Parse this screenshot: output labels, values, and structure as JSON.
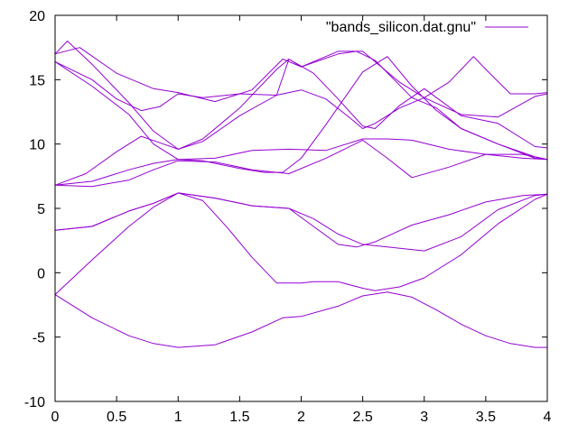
{
  "chart_data": {
    "type": "line",
    "title": "",
    "xlabel": "",
    "ylabel": "",
    "xlim": [
      0,
      4
    ],
    "ylim": [
      -10,
      20
    ],
    "xticks": [
      0,
      0.5,
      1,
      1.5,
      2,
      2.5,
      3,
      3.5,
      4
    ],
    "xtick_labels": [
      "0",
      "0.5",
      "1",
      "1.5",
      "2",
      "2.5",
      "3",
      "3.5",
      "4"
    ],
    "yticks": [
      -10,
      -5,
      0,
      5,
      10,
      15,
      20
    ],
    "ytick_labels": [
      "-10",
      "-5",
      "0",
      "5",
      "10",
      "15",
      "20"
    ],
    "grid": false,
    "legend": {
      "position": "top-right",
      "entries": [
        "\"bands_silicon.dat.gnu\""
      ]
    },
    "line_color": "#9400d3",
    "series": [
      {
        "x": [
          0,
          0.3,
          0.6,
          0.8,
          1.0,
          1.3,
          1.6,
          1.85,
          2.0,
          2.3,
          2.5,
          2.7,
          2.9,
          3.1,
          3.3,
          3.5,
          3.7,
          3.9,
          4.0
        ],
        "values": [
          -1.7,
          -3.5,
          -4.9,
          -5.5,
          -5.8,
          -5.6,
          -4.6,
          -3.5,
          -3.4,
          -2.6,
          -1.8,
          -1.5,
          -1.9,
          -2.9,
          -4.0,
          -4.9,
          -5.5,
          -5.8,
          -5.8
        ]
      },
      {
        "x": [
          0,
          0.3,
          0.6,
          0.8,
          1.0,
          1.2,
          1.4,
          1.6,
          1.8,
          2.0,
          2.1,
          2.3,
          2.5,
          2.6,
          2.8,
          3.0,
          3.3,
          3.6,
          3.9,
          4.0
        ],
        "values": [
          -1.7,
          1.0,
          3.6,
          5.1,
          6.2,
          5.6,
          3.5,
          1.2,
          -0.8,
          -0.8,
          -0.7,
          -0.7,
          -1.2,
          -1.4,
          -1.1,
          -0.4,
          1.4,
          3.8,
          5.7,
          6.1
        ]
      },
      {
        "x": [
          0,
          0.3,
          0.6,
          0.8,
          1.0,
          1.3,
          1.6,
          1.9,
          2.1,
          2.3,
          2.5,
          2.7,
          3.0,
          3.3,
          3.6,
          3.9,
          4.0
        ],
        "values": [
          3.3,
          3.6,
          4.8,
          5.4,
          6.2,
          5.8,
          5.2,
          5.0,
          4.2,
          3.0,
          2.2,
          2.0,
          1.7,
          2.8,
          4.9,
          6.0,
          6.1
        ]
      },
      {
        "x": [
          0,
          0.3,
          0.6,
          0.8,
          1.0,
          1.3,
          1.6,
          1.9,
          2.1,
          2.3,
          2.45,
          2.6,
          2.9,
          3.2,
          3.5,
          3.8,
          4.0
        ],
        "values": [
          3.3,
          3.6,
          4.8,
          5.4,
          6.2,
          5.8,
          5.2,
          5.0,
          3.6,
          2.2,
          2.0,
          2.4,
          3.7,
          4.5,
          5.5,
          6.0,
          6.1
        ]
      },
      {
        "x": [
          0,
          0.3,
          0.6,
          0.8,
          1.0,
          1.3,
          1.6,
          1.9,
          2.2,
          2.5,
          2.7,
          2.9,
          3.2,
          3.5,
          3.8,
          4.0
        ],
        "values": [
          6.8,
          7.1,
          8.0,
          8.5,
          8.8,
          8.9,
          9.5,
          9.6,
          9.5,
          10.4,
          10.4,
          10.3,
          9.6,
          9.2,
          8.9,
          8.8
        ]
      },
      {
        "x": [
          0,
          0.3,
          0.6,
          0.8,
          1.0,
          1.3,
          1.6,
          1.9,
          2.2,
          2.5,
          2.7,
          2.9,
          3.2,
          3.5,
          3.8,
          4.0
        ],
        "values": [
          6.8,
          6.7,
          7.2,
          8.0,
          8.7,
          8.6,
          8.0,
          7.7,
          8.9,
          10.3,
          8.9,
          7.4,
          8.2,
          9.2,
          9.2,
          8.8
        ]
      },
      {
        "x": [
          0,
          0.25,
          0.5,
          0.7,
          0.85,
          1.0,
          1.2,
          1.5,
          1.8,
          1.9,
          2.1,
          2.3,
          2.5,
          2.6,
          2.8,
          3.0,
          3.3,
          3.6,
          3.9,
          4.0
        ],
        "values": [
          6.8,
          7.7,
          9.4,
          10.6,
          10.1,
          9.6,
          10.2,
          12.2,
          13.8,
          16.6,
          15.5,
          13.5,
          11.4,
          11.2,
          13.0,
          14.3,
          12.2,
          11.6,
          9.8,
          9.7
        ]
      },
      {
        "x": [
          0,
          0.3,
          0.5,
          0.7,
          0.85,
          1.0,
          1.2,
          1.5,
          1.8,
          2.0,
          2.2,
          2.4,
          2.5,
          2.6,
          2.8,
          3.0,
          3.3,
          3.6,
          3.9,
          4.0
        ],
        "values": [
          16.4,
          15.0,
          13.5,
          12.6,
          12.9,
          13.9,
          13.6,
          13.9,
          13.8,
          14.2,
          13.5,
          12.0,
          11.2,
          11.6,
          12.8,
          13.6,
          12.3,
          12.1,
          13.7,
          13.9
        ]
      },
      {
        "x": [
          0,
          0.3,
          0.6,
          0.8,
          1.0,
          1.2,
          1.5,
          1.7,
          1.85,
          2.0,
          2.2,
          2.5,
          2.7,
          2.9,
          3.1,
          3.3,
          3.6,
          3.9,
          4.0
        ],
        "values": [
          16.4,
          14.5,
          12.3,
          10.0,
          8.8,
          8.7,
          8.1,
          7.8,
          7.8,
          8.9,
          11.5,
          15.6,
          16.8,
          14.5,
          12.6,
          11.2,
          10.0,
          8.9,
          8.8
        ]
      },
      {
        "x": [
          0,
          0.1,
          0.3,
          0.6,
          0.8,
          1.0,
          1.2,
          1.5,
          1.8,
          1.9,
          2.0,
          2.3,
          2.45,
          2.6,
          2.9,
          3.1,
          3.3,
          3.6,
          3.9,
          4.0
        ],
        "values": [
          17.0,
          18.0,
          16.2,
          13.2,
          11.0,
          9.6,
          10.4,
          12.8,
          15.8,
          16.6,
          16.0,
          17.0,
          17.2,
          16.5,
          13.6,
          12.8,
          11.2,
          10.0,
          9.0,
          8.8
        ]
      },
      {
        "x": [
          0,
          0.2,
          0.5,
          0.8,
          1.0,
          1.3,
          1.6,
          1.85,
          2.0,
          2.3,
          2.5,
          2.8,
          3.0,
          3.2,
          3.4,
          3.5,
          3.7,
          3.9,
          4.0
        ],
        "values": [
          17.0,
          17.5,
          15.5,
          14.3,
          14.0,
          13.3,
          14.2,
          16.6,
          16.0,
          17.2,
          17.2,
          14.8,
          13.6,
          14.8,
          16.8,
          15.8,
          13.9,
          13.9,
          14.0
        ]
      }
    ]
  }
}
